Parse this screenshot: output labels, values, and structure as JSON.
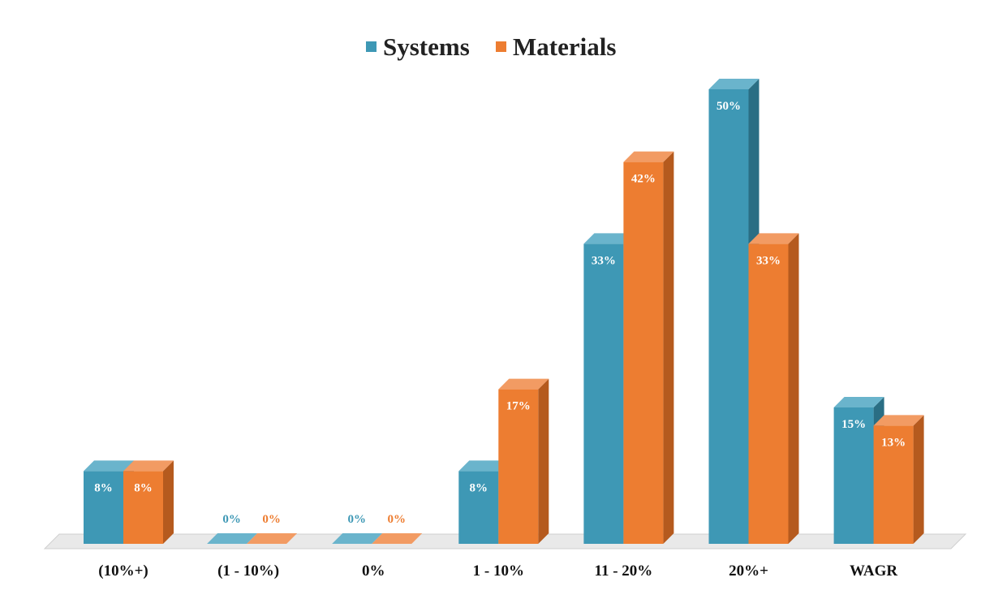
{
  "chart_data": {
    "type": "bar",
    "style": "3d-clustered-column",
    "title": "",
    "xlabel": "",
    "ylabel": "",
    "ylim": [
      0,
      50
    ],
    "grid": false,
    "legend_position": "top-center",
    "categories": [
      "(10%+)",
      "(1 - 10%)",
      "0%",
      "1 - 10%",
      "11 - 20%",
      "20%+",
      "WAGR"
    ],
    "series": [
      {
        "name": "Systems",
        "color": "#3E98B5",
        "values": [
          8,
          0,
          0,
          8,
          33,
          50,
          15
        ],
        "labels": [
          "8%",
          "0%",
          "0%",
          "8%",
          "33%",
          "50%",
          "15%"
        ]
      },
      {
        "name": "Materials",
        "color": "#ED7D31",
        "values": [
          8,
          0,
          0,
          17,
          42,
          33,
          13
        ],
        "labels": [
          "8%",
          "0%",
          "0%",
          "17%",
          "42%",
          "33%",
          "13%"
        ]
      }
    ]
  },
  "colors": {
    "systems_front": "#3E98B5",
    "systems_top": "#6AB4CC",
    "systems_side": "#2A6E84",
    "materials_front": "#ED7D31",
    "materials_top": "#F29B63",
    "materials_side": "#B55A1E",
    "floor": "#E9E9E9",
    "floor_edge": "#D0D0D0",
    "label_on_bar": "#FFFFFF"
  }
}
